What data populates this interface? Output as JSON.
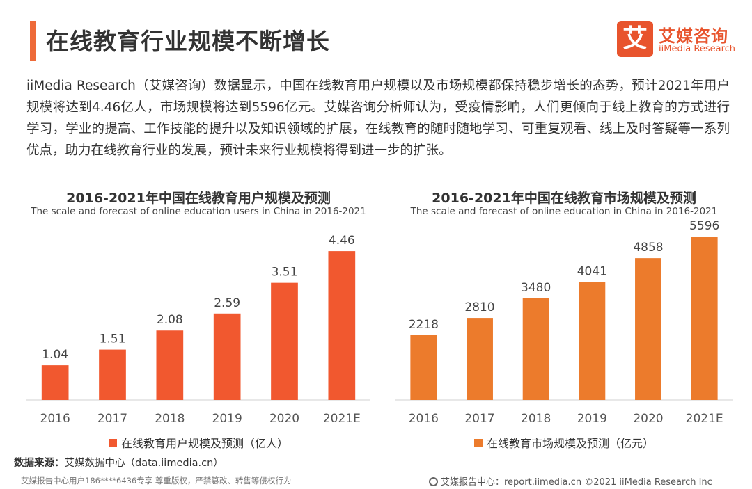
{
  "header": {
    "title": "在线教育行业规模不断增长",
    "logo_mark": "艾",
    "logo_cn": "艾媒咨询",
    "logo_en": "iiMedia Research"
  },
  "intro": "iiMedia Research（艾媒咨询）数据显示，中国在线教育用户规模以及市场规模都保持稳步增长的态势，预计2021年用户规模将达到4.46亿人，市场规模将达到5596亿元。艾媒咨询分析师认为，受疫情影响，人们更倾向于线上教育的方式进行学习，学业的提高、工作技能的提升以及知识领域的扩展，在线教育的随时随地学习、可重复观看、线上及时答疑等一系列优点，助力在线教育行业的发展，预计未来行业规模将得到进一步的扩张。",
  "colors": {
    "accent": "#ee6a39",
    "users_bar": "#f1582f",
    "market_bar": "#ec7b2c"
  },
  "chart_data": [
    {
      "type": "bar",
      "title": "2016-2021年中国在线教育用户规模及预测",
      "subtitle": "The scale and forecast of online education users in China in 2016-2021",
      "categories": [
        "2016",
        "2017",
        "2018",
        "2019",
        "2020",
        "2021E"
      ],
      "series": [
        {
          "name": "在线教育用户规模及预测（亿人）",
          "values": [
            1.04,
            1.51,
            2.08,
            2.59,
            3.51,
            4.46
          ]
        }
      ],
      "labels": [
        "1.04",
        "1.51",
        "2.08",
        "2.59",
        "3.51",
        "4.46"
      ],
      "ylim": [
        0,
        4.9
      ],
      "grid": false,
      "legend_position": "bottom"
    },
    {
      "type": "bar",
      "title": "2016-2021年中国在线教育市场规模及预测",
      "subtitle": "The scale and forecast of online education in China in 2016-2021",
      "categories": [
        "2016",
        "2017",
        "2018",
        "2019",
        "2020",
        "2021E"
      ],
      "series": [
        {
          "name": "在线教育市场规模及预测（亿元）",
          "values": [
            2218,
            2810,
            3480,
            4041,
            4858,
            5596
          ]
        }
      ],
      "labels": [
        "2218",
        "2810",
        "3480",
        "4041",
        "4858",
        "5596"
      ],
      "ylim": [
        0,
        5600
      ],
      "grid": false,
      "legend_position": "bottom"
    }
  ],
  "source": {
    "label": "数据来源：",
    "text": "艾媒数据中心（data.iimedia.cn）"
  },
  "footer": {
    "left": "艾媒报告中心用户186****6436专享 尊重版权，严禁篡改、转售等侵权行为",
    "right": "艾媒报告中心：report.iimedia.cn    ©2021  iiMedia Research  Inc"
  }
}
